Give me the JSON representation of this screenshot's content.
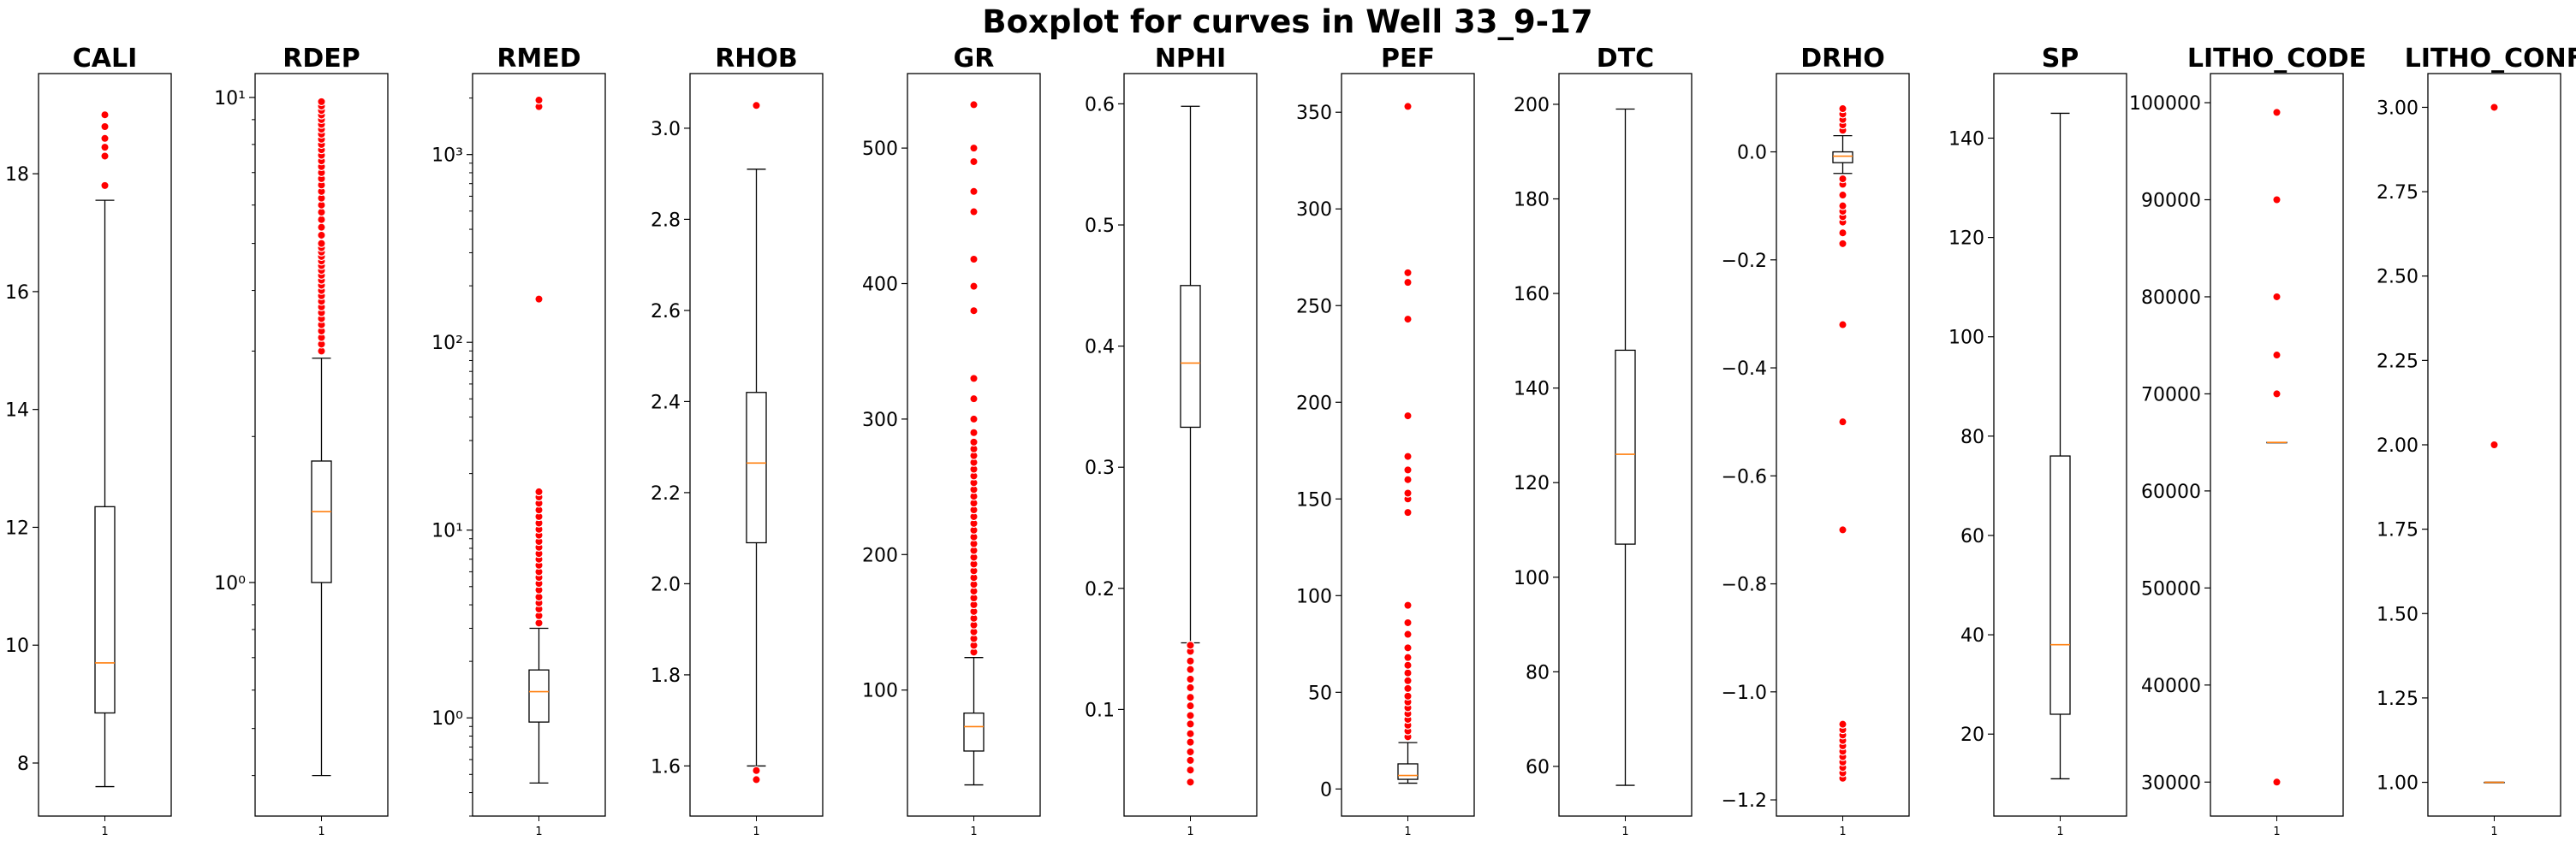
{
  "figure": {
    "title": "Boxplot for curves in Well 33_9-17"
  },
  "colors": {
    "box": "#000000",
    "median": "#ff7f0e",
    "flier": "#ff0000",
    "background": "#ffffff"
  },
  "chart_data": [
    {
      "type": "box",
      "title": "CALI",
      "scale": "linear",
      "ylim": [
        7.1,
        19.7
      ],
      "yticks": [
        8,
        10,
        12,
        14,
        16,
        18
      ],
      "ytick_labels": [
        "8",
        "10",
        "12",
        "14",
        "16",
        "18"
      ],
      "xtick_label": "1",
      "box": {
        "whislo": 7.6,
        "q1": 8.85,
        "med": 9.7,
        "q3": 12.35,
        "whishi": 17.55
      },
      "fliers": [
        17.8,
        18.3,
        18.45,
        18.6,
        18.8,
        19.0
      ]
    },
    {
      "type": "box",
      "title": "RDEP",
      "scale": "log",
      "ylim": [
        0.33,
        11.2
      ],
      "yticks": [
        1,
        10
      ],
      "ytick_labels": [
        "10⁰",
        "10¹"
      ],
      "xtick_label": "1",
      "box": {
        "whislo": 0.4,
        "q1": 1.0,
        "med": 1.4,
        "q3": 1.78,
        "whishi": 2.9
      },
      "fliers": [
        3.0,
        3.1,
        3.2,
        3.3,
        3.4,
        3.5,
        3.6,
        3.7,
        3.8,
        3.9,
        4.0,
        4.1,
        4.2,
        4.3,
        4.4,
        4.5,
        4.6,
        4.7,
        4.8,
        4.9,
        5.0,
        5.2,
        5.4,
        5.6,
        5.8,
        6.0,
        6.2,
        6.4,
        6.6,
        6.8,
        7.0,
        7.2,
        7.4,
        7.6,
        7.8,
        8.0,
        8.2,
        8.4,
        8.6,
        8.8,
        9.0,
        9.2,
        9.4,
        9.6,
        9.8
      ]
    },
    {
      "type": "box",
      "title": "RMED",
      "scale": "log",
      "ylim": [
        0.3,
        2700
      ],
      "yticks": [
        1,
        10,
        100,
        1000
      ],
      "ytick_labels": [
        "10⁰",
        "10¹",
        "10²",
        "10³"
      ],
      "xtick_label": "1",
      "box": {
        "whislo": 0.45,
        "q1": 0.95,
        "med": 1.38,
        "q3": 1.8,
        "whishi": 3.0
      },
      "fliers": [
        3.2,
        3.5,
        3.8,
        4.1,
        4.4,
        4.8,
        5.2,
        5.6,
        6.0,
        6.5,
        7.0,
        7.5,
        8.1,
        8.7,
        9.4,
        10.1,
        10.9,
        11.8,
        12.8,
        13.9,
        15.0,
        16.0,
        170,
        1800,
        1950
      ]
    },
    {
      "type": "box",
      "title": "RHOB",
      "scale": "linear",
      "ylim": [
        1.49,
        3.12
      ],
      "yticks": [
        1.6,
        1.8,
        2.0,
        2.2,
        2.4,
        2.6,
        2.8,
        3.0
      ],
      "ytick_labels": [
        "1.6",
        "1.8",
        "2.0",
        "2.2",
        "2.4",
        "2.6",
        "2.8",
        "3.0"
      ],
      "xtick_label": "1",
      "box": {
        "whislo": 1.6,
        "q1": 2.09,
        "med": 2.265,
        "q3": 2.42,
        "whishi": 2.91
      },
      "fliers": [
        1.57,
        1.59,
        3.05
      ]
    },
    {
      "type": "box",
      "title": "GR",
      "scale": "linear",
      "ylim": [
        7,
        555
      ],
      "yticks": [
        100,
        200,
        300,
        400,
        500
      ],
      "ytick_labels": [
        "100",
        "200",
        "300",
        "400",
        "500"
      ],
      "xtick_label": "1",
      "box": {
        "whislo": 30,
        "q1": 55,
        "med": 73,
        "q3": 83,
        "whishi": 124
      },
      "fliers": [
        128,
        133,
        138,
        143,
        148,
        153,
        158,
        163,
        168,
        173,
        178,
        183,
        188,
        193,
        198,
        203,
        208,
        213,
        218,
        223,
        228,
        233,
        238,
        243,
        248,
        253,
        258,
        263,
        268,
        273,
        278,
        283,
        290,
        300,
        315,
        330,
        380,
        398,
        418,
        453,
        468,
        490,
        500,
        532
      ]
    },
    {
      "type": "box",
      "title": "NPHI",
      "scale": "linear",
      "ylim": [
        0.012,
        0.625
      ],
      "yticks": [
        0.1,
        0.2,
        0.3,
        0.4,
        0.5,
        0.6
      ],
      "ytick_labels": [
        "0.1",
        "0.2",
        "0.3",
        "0.4",
        "0.5",
        "0.6"
      ],
      "xtick_label": "1",
      "box": {
        "whislo": 0.155,
        "q1": 0.333,
        "med": 0.386,
        "q3": 0.45,
        "whishi": 0.598
      },
      "fliers": [
        0.04,
        0.05,
        0.058,
        0.065,
        0.073,
        0.08,
        0.088,
        0.095,
        0.103,
        0.11,
        0.118,
        0.125,
        0.133,
        0.14,
        0.148,
        0.153
      ]
    },
    {
      "type": "box",
      "title": "PEF",
      "scale": "linear",
      "ylim": [
        -14,
        370
      ],
      "yticks": [
        0,
        50,
        100,
        150,
        200,
        250,
        300,
        350
      ],
      "ytick_labels": [
        "0",
        "50",
        "100",
        "150",
        "200",
        "250",
        "300",
        "350"
      ],
      "xtick_label": "1",
      "box": {
        "whislo": 3,
        "q1": 5,
        "med": 7,
        "q3": 13,
        "whishi": 24
      },
      "fliers": [
        27,
        30,
        33,
        36,
        39,
        42,
        45,
        48,
        52,
        56,
        60,
        64,
        68,
        73,
        80,
        86,
        95,
        143,
        150,
        153,
        160,
        165,
        172,
        193,
        243,
        262,
        267,
        353
      ]
    },
    {
      "type": "box",
      "title": "DTC",
      "scale": "linear",
      "ylim": [
        49.5,
        206.5
      ],
      "yticks": [
        60,
        80,
        100,
        120,
        140,
        160,
        180,
        200
      ],
      "ytick_labels": [
        "60",
        "80",
        "100",
        "120",
        "140",
        "160",
        "180",
        "200"
      ],
      "xtick_label": "1",
      "box": {
        "whislo": 56,
        "q1": 107,
        "med": 126,
        "q3": 148,
        "whishi": 199
      },
      "fliers": []
    },
    {
      "type": "box",
      "title": "DRHO",
      "scale": "linear",
      "ylim": [
        -1.23,
        0.145
      ],
      "yticks": [
        -1.2,
        -1.0,
        -0.8,
        -0.6,
        -0.4,
        -0.2,
        0.0
      ],
      "ytick_labels": [
        "−1.2",
        "−1.0",
        "−0.8",
        "−0.6",
        "−0.4",
        "−0.2",
        "0.0"
      ],
      "xtick_label": "1",
      "box": {
        "whislo": -0.04,
        "q1": -0.02,
        "med": -0.008,
        "q3": 0.0,
        "whishi": 0.03
      },
      "fliers": [
        -1.16,
        -1.15,
        -1.14,
        -1.13,
        -1.12,
        -1.11,
        -1.1,
        -1.09,
        -1.08,
        -1.07,
        -1.06,
        -0.7,
        -0.5,
        -0.32,
        -0.17,
        -0.15,
        -0.13,
        -0.12,
        -0.11,
        -0.1,
        -0.08,
        -0.06,
        -0.05,
        0.04,
        0.05,
        0.06,
        0.07,
        0.08
      ]
    },
    {
      "type": "box",
      "title": "SP",
      "scale": "linear",
      "ylim": [
        3.5,
        153
      ],
      "yticks": [
        20,
        40,
        60,
        80,
        100,
        120,
        140
      ],
      "ytick_labels": [
        "20",
        "40",
        "60",
        "80",
        "100",
        "120",
        "140"
      ],
      "xtick_label": "1",
      "box": {
        "whislo": 11,
        "q1": 24,
        "med": 38,
        "q3": 76,
        "whishi": 145
      },
      "fliers": []
    },
    {
      "type": "box",
      "title": "LITHO_CODE",
      "scale": "linear",
      "ylim": [
        26500,
        103000
      ],
      "yticks": [
        30000,
        40000,
        50000,
        60000,
        70000,
        80000,
        90000,
        100000
      ],
      "ytick_labels": [
        "30000",
        "40000",
        "50000",
        "60000",
        "70000",
        "80000",
        "90000",
        "100000"
      ],
      "xtick_label": "1",
      "box": {
        "whislo": 65000,
        "q1": 65000,
        "med": 65000,
        "q3": 65000,
        "whishi": 65000
      },
      "fliers": [
        30000,
        70000,
        74000,
        80000,
        90000,
        99000
      ]
    },
    {
      "type": "box",
      "title": "LITHO_CONF",
      "scale": "linear",
      "ylim": [
        0.9,
        3.1
      ],
      "yticks": [
        1.0,
        1.25,
        1.5,
        1.75,
        2.0,
        2.25,
        2.5,
        2.75,
        3.0
      ],
      "ytick_labels": [
        "1.00",
        "1.25",
        "1.50",
        "1.75",
        "2.00",
        "2.25",
        "2.50",
        "2.75",
        "3.00"
      ],
      "xtick_label": "1",
      "box": {
        "whislo": 1.0,
        "q1": 1.0,
        "med": 1.0,
        "q3": 1.0,
        "whishi": 1.0
      },
      "fliers": [
        2.0,
        3.0
      ]
    }
  ]
}
